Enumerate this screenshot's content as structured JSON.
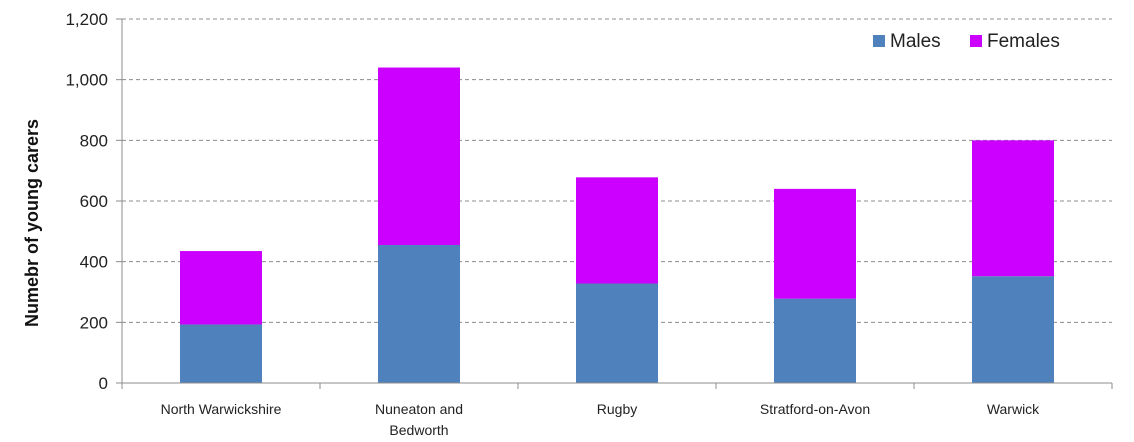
{
  "chart_data": {
    "type": "bar",
    "stacked": true,
    "categories": [
      [
        "North Warwickshire"
      ],
      [
        "Nuneaton and",
        "Bedworth"
      ],
      [
        "Rugby"
      ],
      [
        "Stratford-on-Avon"
      ],
      [
        "Warwick"
      ]
    ],
    "series": [
      {
        "name": "Males",
        "color": "#4f81bd",
        "values": [
          193,
          455,
          328,
          278,
          352
        ]
      },
      {
        "name": "Females",
        "color": "#cc00ff",
        "values": [
          242,
          585,
          350,
          362,
          448
        ]
      }
    ],
    "title": "",
    "xlabel": "",
    "ylabel": "Numebr of young carers",
    "ylim": [
      0,
      1200
    ],
    "yticks": [
      0,
      200,
      400,
      600,
      800,
      1000,
      1200
    ],
    "ytick_labels": [
      "0",
      "200",
      "400",
      "600",
      "800",
      "1,000",
      "1,200"
    ],
    "grid": "horizontal dashed",
    "legend": "top-right"
  }
}
